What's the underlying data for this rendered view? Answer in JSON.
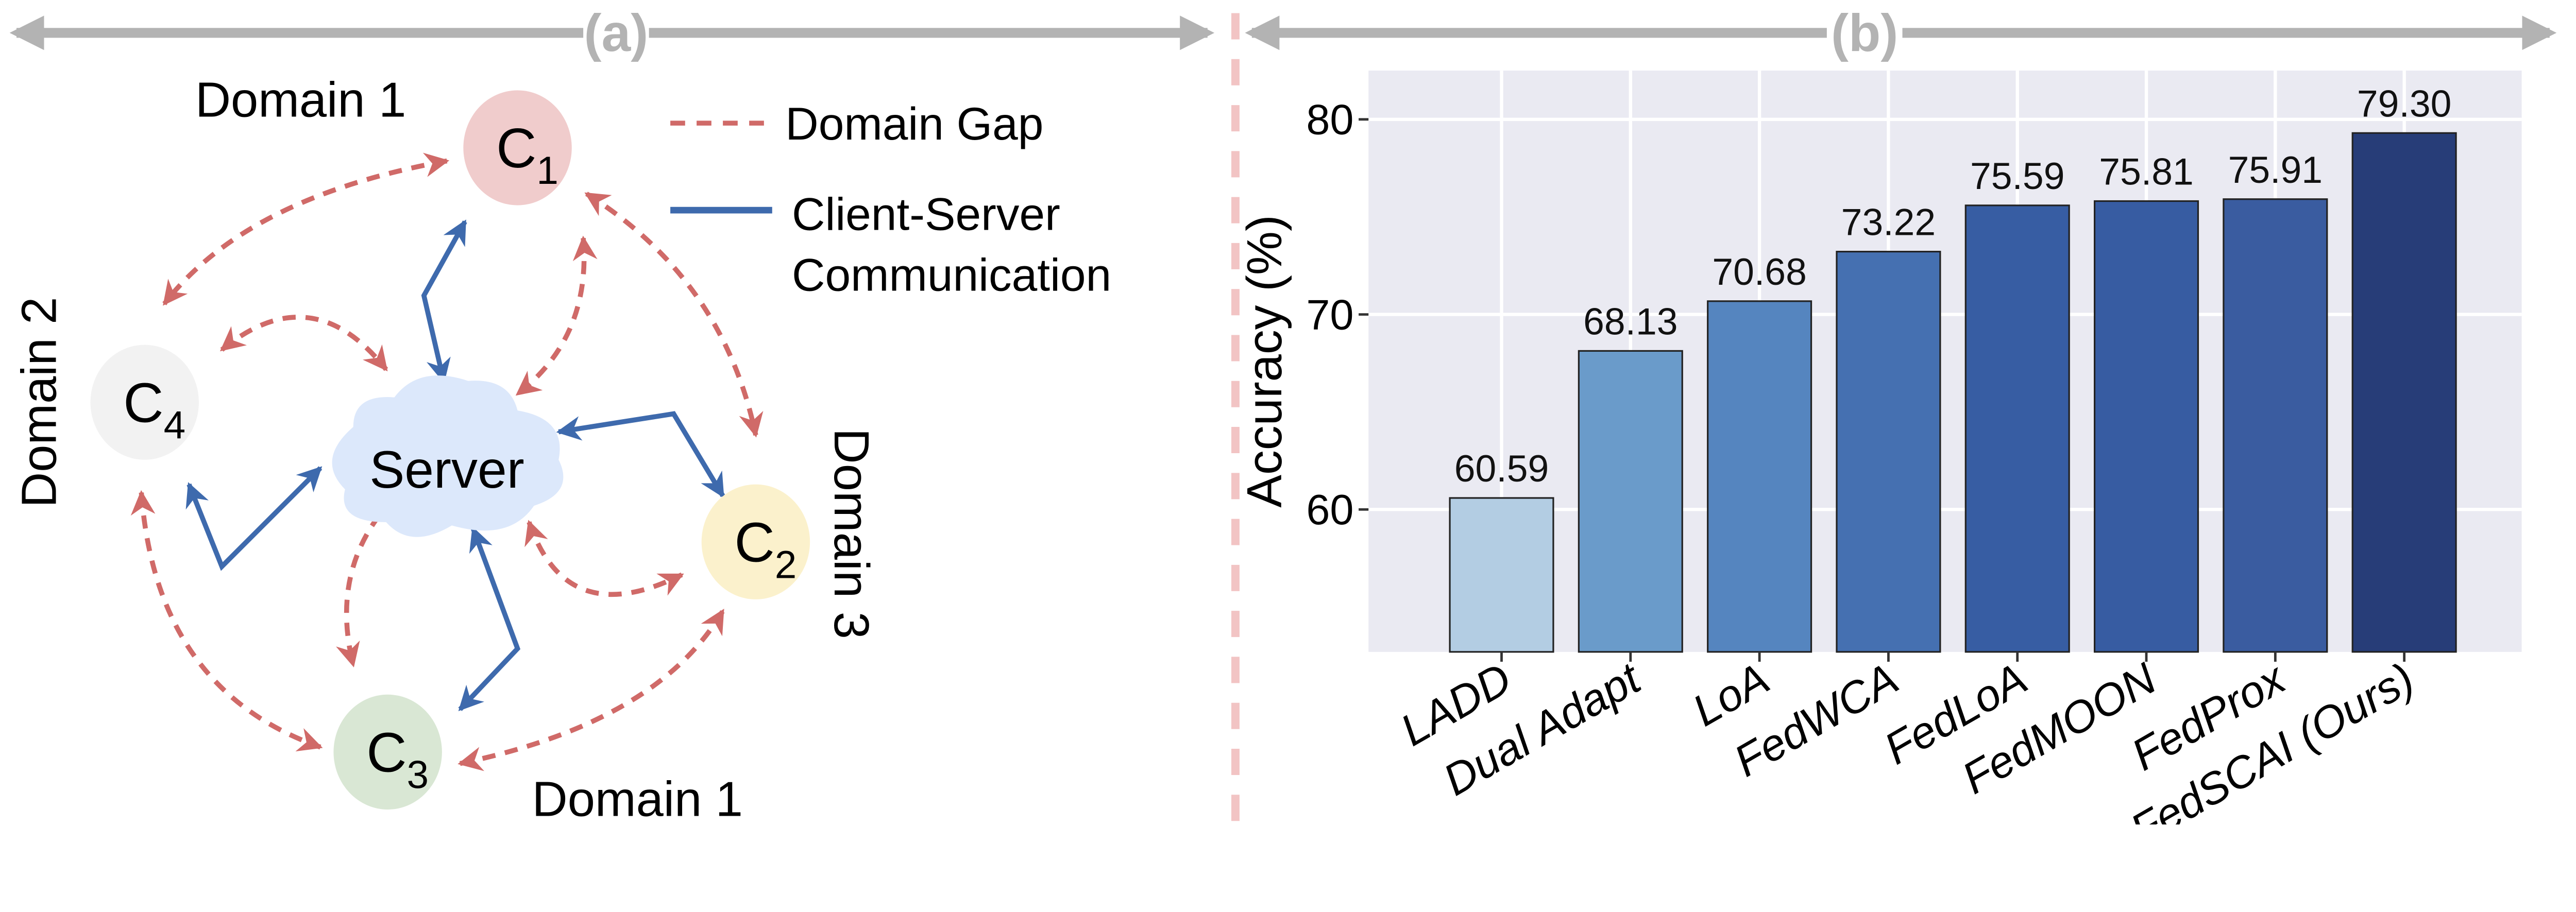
{
  "panel_a": {
    "label": "(a)",
    "legend": {
      "domain_gap": "Domain Gap",
      "comm_line1": "Client-Server",
      "comm_line2": "Communication"
    },
    "nodes": {
      "c1": "C",
      "c1_sub": "1",
      "c2": "C",
      "c2_sub": "2",
      "c3": "C",
      "c3_sub": "3",
      "c4": "C",
      "c4_sub": "4",
      "server": "Server"
    },
    "domains": {
      "top": "Domain 1",
      "left": "Domain 2",
      "right": "Domain 3",
      "bottom": "Domain 1"
    },
    "colors": {
      "domain_gap": "#d06a68",
      "communication": "#3e6aad",
      "c1": "#f0cccc",
      "c2": "#fbf1cc",
      "c3": "#d9e7d4",
      "c4": "#f2f2f2",
      "server": "#dce8fb"
    }
  },
  "panel_b": {
    "label": "(b)"
  },
  "chart_data": {
    "type": "bar",
    "title": "",
    "xlabel": "",
    "ylabel": "Accuracy (%)",
    "ylim": [
      52.7,
      82.5
    ],
    "yticks": [
      60,
      70,
      80
    ],
    "grid": true,
    "categories": [
      "LADD",
      "Dual Adapt",
      "LoA",
      "FedWCA",
      "FedLoA",
      "FedMOON",
      "FedProx",
      "FedSCAI (Ours)"
    ],
    "values": [
      60.59,
      68.13,
      70.68,
      73.22,
      75.59,
      75.81,
      75.91,
      79.3
    ],
    "value_labels": [
      "60.59",
      "68.13",
      "70.68",
      "73.22",
      "75.59",
      "75.81",
      "75.91",
      "79.30"
    ],
    "colors": [
      "#b3cde3",
      "#6a9bca",
      "#5585bf",
      "#4570b1",
      "#375da3",
      "#375ca2",
      "#3a5ca0",
      "#273d78"
    ],
    "background": "#eaeaf2"
  }
}
